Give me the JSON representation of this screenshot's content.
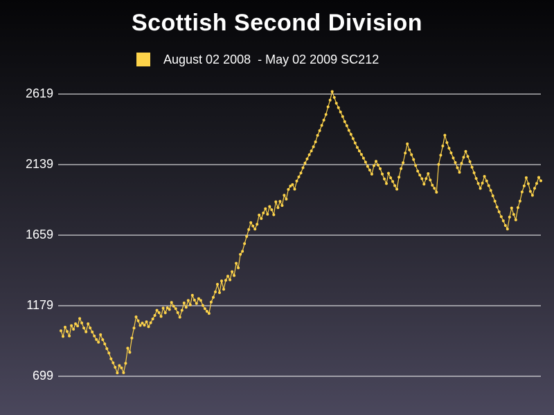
{
  "colors": {
    "series": "#fdd34a",
    "gridline": "#ffffff",
    "text": "#ffffff"
  },
  "chart_data": {
    "type": "line",
    "title": "Scottish Second Division",
    "xlabel": "",
    "ylabel": "",
    "ylim": [
      699,
      2619
    ],
    "grid": true,
    "legend_position": "top",
    "y_ticks": [
      "699",
      "1179",
      "1659",
      "2139",
      "2619"
    ],
    "series": [
      {
        "name": "August 02 2008  - May 02 2009 SC212",
        "values": [
          1008,
          970,
          1033,
          1004,
          973,
          1044,
          1019,
          1056,
          1041,
          1092,
          1062,
          1027,
          1001,
          1056,
          1028,
          1000,
          973,
          949,
          931,
          982,
          948,
          919,
          887,
          857,
          818,
          791,
          760,
          722,
          772,
          756,
          723,
          787,
          890,
          862,
          959,
          1027,
          1103,
          1077,
          1045,
          1061,
          1047,
          1070,
          1036,
          1063,
          1089,
          1113,
          1148,
          1132,
          1106,
          1163,
          1131,
          1165,
          1153,
          1201,
          1176,
          1159,
          1132,
          1101,
          1148,
          1198,
          1168,
          1215,
          1184,
          1250,
          1217,
          1194,
          1227,
          1215,
          1181,
          1159,
          1141,
          1127,
          1204,
          1236,
          1273,
          1325,
          1268,
          1348,
          1291,
          1352,
          1380,
          1355,
          1411,
          1384,
          1468,
          1437,
          1528,
          1549,
          1601,
          1650,
          1697,
          1744,
          1721,
          1700,
          1733,
          1796,
          1772,
          1810,
          1839,
          1801,
          1854,
          1832,
          1798,
          1886,
          1846,
          1889,
          1861,
          1931,
          1904,
          1970,
          1993,
          2003,
          1972,
          2027,
          2055,
          2082,
          2118,
          2150,
          2178,
          2206,
          2232,
          2260,
          2294,
          2338,
          2370,
          2406,
          2442,
          2480,
          2532,
          2578,
          2636,
          2596,
          2557,
          2527,
          2497,
          2466,
          2431,
          2404,
          2372,
          2345,
          2316,
          2286,
          2256,
          2232,
          2208,
          2183,
          2156,
          2127,
          2102,
          2074,
          2132,
          2161,
          2136,
          2111,
          2075,
          2041,
          2010,
          2080,
          2049,
          2024,
          1996,
          1972,
          2054,
          2112,
          2152,
          2218,
          2280,
          2239,
          2207,
          2174,
          2133,
          2095,
          2068,
          2043,
          2006,
          2044,
          2078,
          2034,
          1999,
          1978,
          1951,
          2140,
          2203,
          2266,
          2339,
          2289,
          2251,
          2219,
          2184,
          2153,
          2118,
          2087,
          2148,
          2189,
          2229,
          2194,
          2159,
          2121,
          2083,
          2045,
          2011,
          1977,
          2013,
          2059,
          2028,
          1996,
          1963,
          1927,
          1890,
          1851,
          1818,
          1785,
          1757,
          1725,
          1701,
          1782,
          1844,
          1800,
          1763,
          1847,
          1891,
          1953,
          1994,
          2050,
          2009,
          1957,
          1930,
          1978,
          2011,
          2052,
          2029
        ]
      }
    ]
  }
}
